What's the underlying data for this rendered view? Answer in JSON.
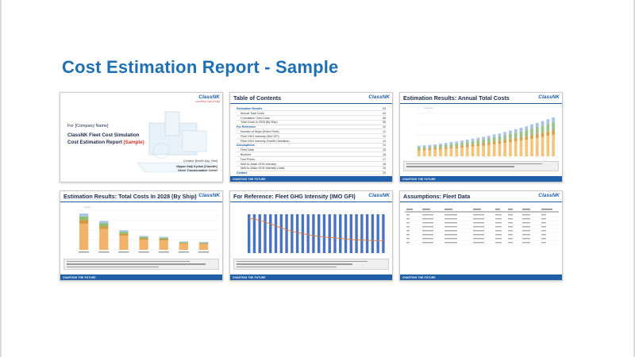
{
  "page": {
    "title": "Cost Estimation Report - Sample"
  },
  "brand": {
    "logo": "ClassNK",
    "tagline": "CHARTING THE FUTURE",
    "footer": "CHARTING THE FUTURE"
  },
  "colors": {
    "accent": "#1e6fb4",
    "header_rule": "#1f5fa8",
    "red": "#d2352b"
  },
  "slides": {
    "cover": {
      "company": "For [Company Name]",
      "line1": "ClassNK Fleet Cost Simulation",
      "line2": "Cost Estimation Report",
      "line2_red": "(Sample)",
      "created": "Created: [Month Day, Year]",
      "org1": "Nippon Kaiji Kyokai (ClassNK)",
      "org2": "Green Transformation Center"
    },
    "toc": {
      "title": "Table of Contents",
      "rows": [
        {
          "kind": "section",
          "label": "Estimation Results",
          "page": "03"
        },
        {
          "kind": "item",
          "label": "Annual Total Costs",
          "page": "04"
        },
        {
          "kind": "item",
          "label": "Cumulative Total Costs",
          "page": "06"
        },
        {
          "kind": "item",
          "label": "Total Costs In 2028 (By Ship)",
          "page": "08"
        },
        {
          "kind": "section",
          "label": "For Reference",
          "page": "10"
        },
        {
          "kind": "item",
          "label": "Number of Ships (Entire Fleet)",
          "page": "11"
        },
        {
          "kind": "item",
          "label": "Fleet GHG Intensity (IMO GFI)",
          "page": "12"
        },
        {
          "kind": "item",
          "label": "Fleet GHG Intensity (FuelEU Maritime)",
          "page": "13"
        },
        {
          "kind": "section",
          "label": "Assumptions",
          "page": "14"
        },
        {
          "kind": "item",
          "label": "Fleet Data",
          "page": "15"
        },
        {
          "kind": "item",
          "label": "Bunkers",
          "page": "16"
        },
        {
          "kind": "item",
          "label": "Fuel Prices",
          "page": "17"
        },
        {
          "kind": "item",
          "label": "Well-to-Wake GHG Intensity",
          "page": "18"
        },
        {
          "kind": "item",
          "label": "Well-to-Wake GHG Intensity Limits",
          "page": "19"
        },
        {
          "kind": "section",
          "label": "Contact",
          "page": "20"
        }
      ]
    },
    "annual": {
      "title": "Estimation Results: Annual Total Costs"
    },
    "byship": {
      "title": "Estimation Results: Total Costs In 2028 (By Ship)"
    },
    "ghg": {
      "title": "For Reference: Fleet GHG Intensity (IMO GFI)"
    },
    "fleet": {
      "title": "Assumptions: Fleet Data"
    }
  },
  "chart_data": [
    {
      "type": "bar",
      "title": "Estimation Results: Annual Total Costs",
      "series": [
        {
          "name": "",
          "values": [
            22,
            23,
            24,
            25,
            27,
            28,
            30,
            31,
            33,
            35,
            37,
            39,
            41,
            43,
            46,
            48,
            51,
            54,
            57,
            60,
            63,
            67,
            70,
            74,
            78,
            82
          ]
        }
      ]
    },
    {
      "type": "bar",
      "title": "Estimation Results: Total Costs In 2028 (By Ship)",
      "categories": [
        "",
        "",
        "",
        "",
        "",
        "",
        ""
      ],
      "series": [
        {
          "name": "",
          "values": [
            78,
            62,
            42,
            30,
            28,
            18,
            17
          ]
        }
      ]
    },
    {
      "type": "bar",
      "title": "For Reference: Fleet GHG Intensity (IMO GFI)",
      "series": [
        {
          "name": "",
          "values": [
            80,
            80,
            80,
            80,
            80,
            80,
            80,
            80,
            80,
            80,
            80,
            80,
            80,
            80,
            80,
            80,
            80,
            80,
            80,
            80,
            80,
            80,
            80,
            80,
            80,
            80
          ]
        },
        {
          "name": "",
          "values": [
            72,
            70,
            67,
            64,
            60,
            56,
            52,
            48,
            45,
            42,
            40,
            38,
            36,
            34,
            33,
            32,
            31,
            30,
            29,
            28,
            27,
            27,
            26,
            26,
            25,
            25
          ]
        }
      ]
    }
  ]
}
